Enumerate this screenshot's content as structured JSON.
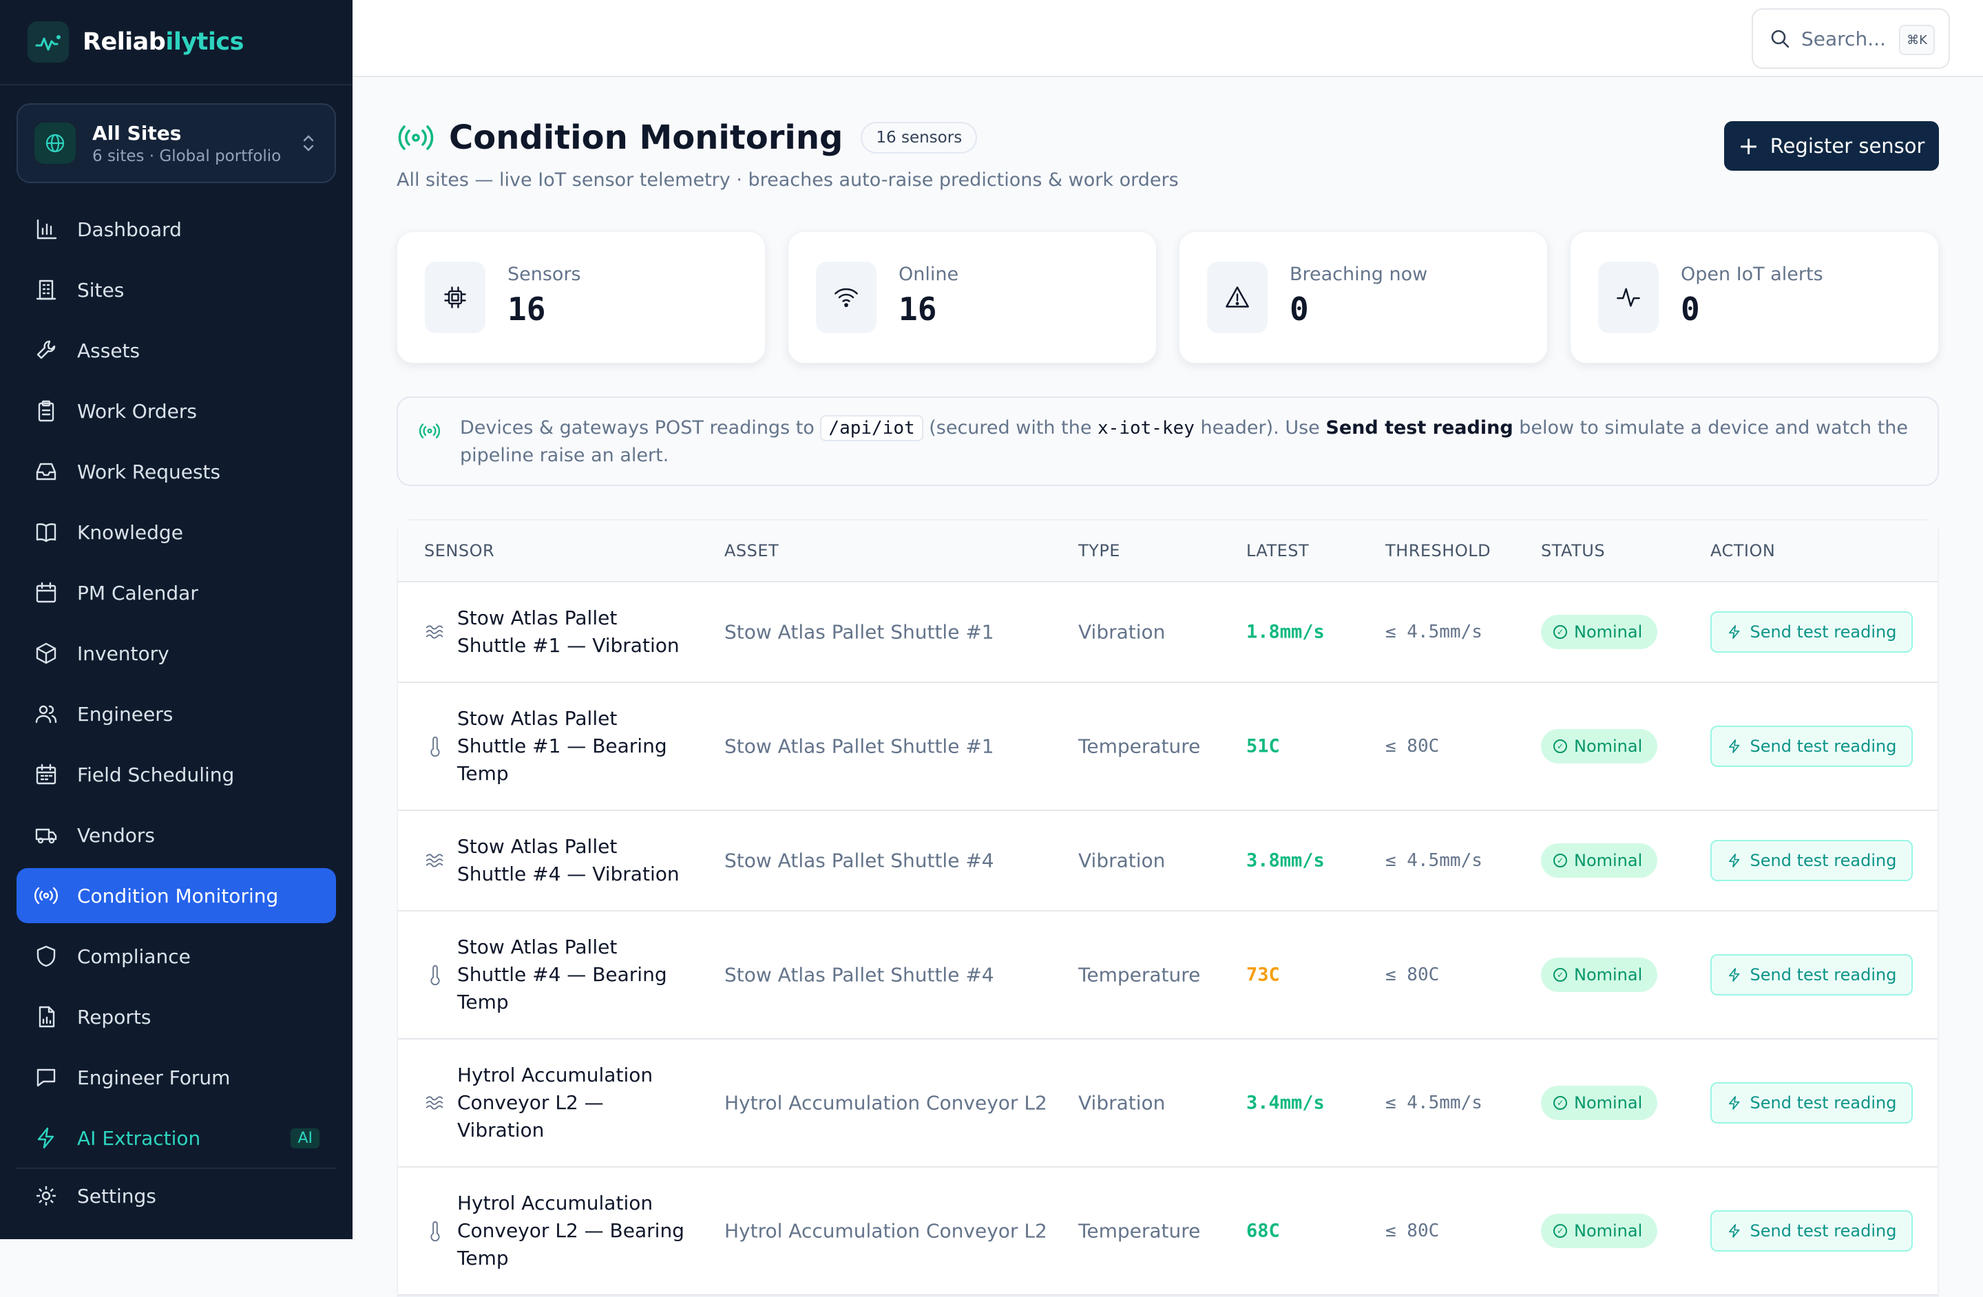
{
  "brand": {
    "name_a": "Reliab",
    "name_b": "ilytics"
  },
  "site_switcher": {
    "title": "All Sites",
    "subtitle": "6 sites · Global portfolio"
  },
  "nav": [
    {
      "label": "Dashboard",
      "icon": "bar-chart-icon"
    },
    {
      "label": "Sites",
      "icon": "building-icon"
    },
    {
      "label": "Assets",
      "icon": "wrench-icon"
    },
    {
      "label": "Work Orders",
      "icon": "clipboard-icon"
    },
    {
      "label": "Work Requests",
      "icon": "inbox-icon"
    },
    {
      "label": "Knowledge",
      "icon": "book-icon"
    },
    {
      "label": "PM Calendar",
      "icon": "calendar-icon"
    },
    {
      "label": "Inventory",
      "icon": "box-icon"
    },
    {
      "label": "Engineers",
      "icon": "users-icon"
    },
    {
      "label": "Field Scheduling",
      "icon": "calendar-grid-icon"
    },
    {
      "label": "Vendors",
      "icon": "truck-icon"
    },
    {
      "label": "Condition Monitoring",
      "icon": "radio-signal-icon",
      "active": true
    },
    {
      "label": "Compliance",
      "icon": "shield-icon"
    },
    {
      "label": "Reports",
      "icon": "report-icon"
    },
    {
      "label": "Engineer Forum",
      "icon": "chat-icon"
    },
    {
      "label": "AI Extraction",
      "icon": "bolt-icon",
      "badge": "AI"
    }
  ],
  "settings_label": "Settings",
  "search": {
    "placeholder": "Search...",
    "shortcut": "⌘K"
  },
  "page": {
    "title": "Condition Monitoring",
    "count_pill": "16 sensors",
    "subtitle": "All sites — live IoT sensor telemetry · breaches auto-raise predictions & work orders",
    "register_button": "Register sensor"
  },
  "stats": [
    {
      "label": "Sensors",
      "value": "16",
      "icon": "chip-icon"
    },
    {
      "label": "Online",
      "value": "16",
      "icon": "wifi-icon"
    },
    {
      "label": "Breaching now",
      "value": "0",
      "icon": "warning-icon"
    },
    {
      "label": "Open IoT alerts",
      "value": "0",
      "icon": "pulse-icon"
    }
  ],
  "info": {
    "t1": "Devices & gateways POST readings to",
    "code": "/api/iot",
    "t2": "(secured with the",
    "header": "x-iot-key",
    "t3": "header). Use",
    "bold": "Send test reading",
    "t4": "below to simulate a device and watch the pipeline raise an alert."
  },
  "table": {
    "headers": {
      "sensor": "SENSOR",
      "asset": "ASSET",
      "type": "TYPE",
      "latest": "LATEST",
      "threshold": "THRESHOLD",
      "status": "STATUS",
      "action": "ACTION"
    },
    "rows": [
      {
        "sensor": "Stow Atlas Pallet Shuttle #1 — Vibration",
        "asset": "Stow Atlas Pallet Shuttle #1",
        "type": "Vibration",
        "latest": "1.8mm/s",
        "latest_color": "#10b981",
        "threshold": "≤ 4.5mm/s",
        "status": "Nominal",
        "action": "Send test reading",
        "icon": "vibration-icon"
      },
      {
        "sensor": "Stow Atlas Pallet Shuttle #1 — Bearing Temp",
        "asset": "Stow Atlas Pallet Shuttle #1",
        "type": "Temperature",
        "latest": "51C",
        "latest_color": "#10b981",
        "threshold": "≤ 80C",
        "status": "Nominal",
        "action": "Send test reading",
        "icon": "thermometer-icon"
      },
      {
        "sensor": "Stow Atlas Pallet Shuttle #4 — Vibration",
        "asset": "Stow Atlas Pallet Shuttle #4",
        "type": "Vibration",
        "latest": "3.8mm/s",
        "latest_color": "#10b981",
        "threshold": "≤ 4.5mm/s",
        "status": "Nominal",
        "action": "Send test reading",
        "icon": "vibration-icon"
      },
      {
        "sensor": "Stow Atlas Pallet Shuttle #4 — Bearing Temp",
        "asset": "Stow Atlas Pallet Shuttle #4",
        "type": "Temperature",
        "latest": "73C",
        "latest_color": "#f59e0b",
        "threshold": "≤ 80C",
        "status": "Nominal",
        "action": "Send test reading",
        "icon": "thermometer-icon"
      },
      {
        "sensor": "Hytrol Accumulation Conveyor L2 — Vibration",
        "asset": "Hytrol Accumulation Conveyor L2",
        "type": "Vibration",
        "latest": "3.4mm/s",
        "latest_color": "#10b981",
        "threshold": "≤ 4.5mm/s",
        "status": "Nominal",
        "action": "Send test reading",
        "icon": "vibration-icon"
      },
      {
        "sensor": "Hytrol Accumulation Conveyor L2 — Bearing Temp",
        "asset": "Hytrol Accumulation Conveyor L2",
        "type": "Temperature",
        "latest": "68C",
        "latest_color": "#10b981",
        "threshold": "≤ 80C",
        "status": "Nominal",
        "action": "Send test reading",
        "icon": "thermometer-icon"
      }
    ]
  },
  "colors": {
    "accent": "#2563eb",
    "teal": "#2dd4bf",
    "sidebar": "#0f1b2d",
    "nominal": "#059669",
    "warn": "#f59e0b"
  }
}
